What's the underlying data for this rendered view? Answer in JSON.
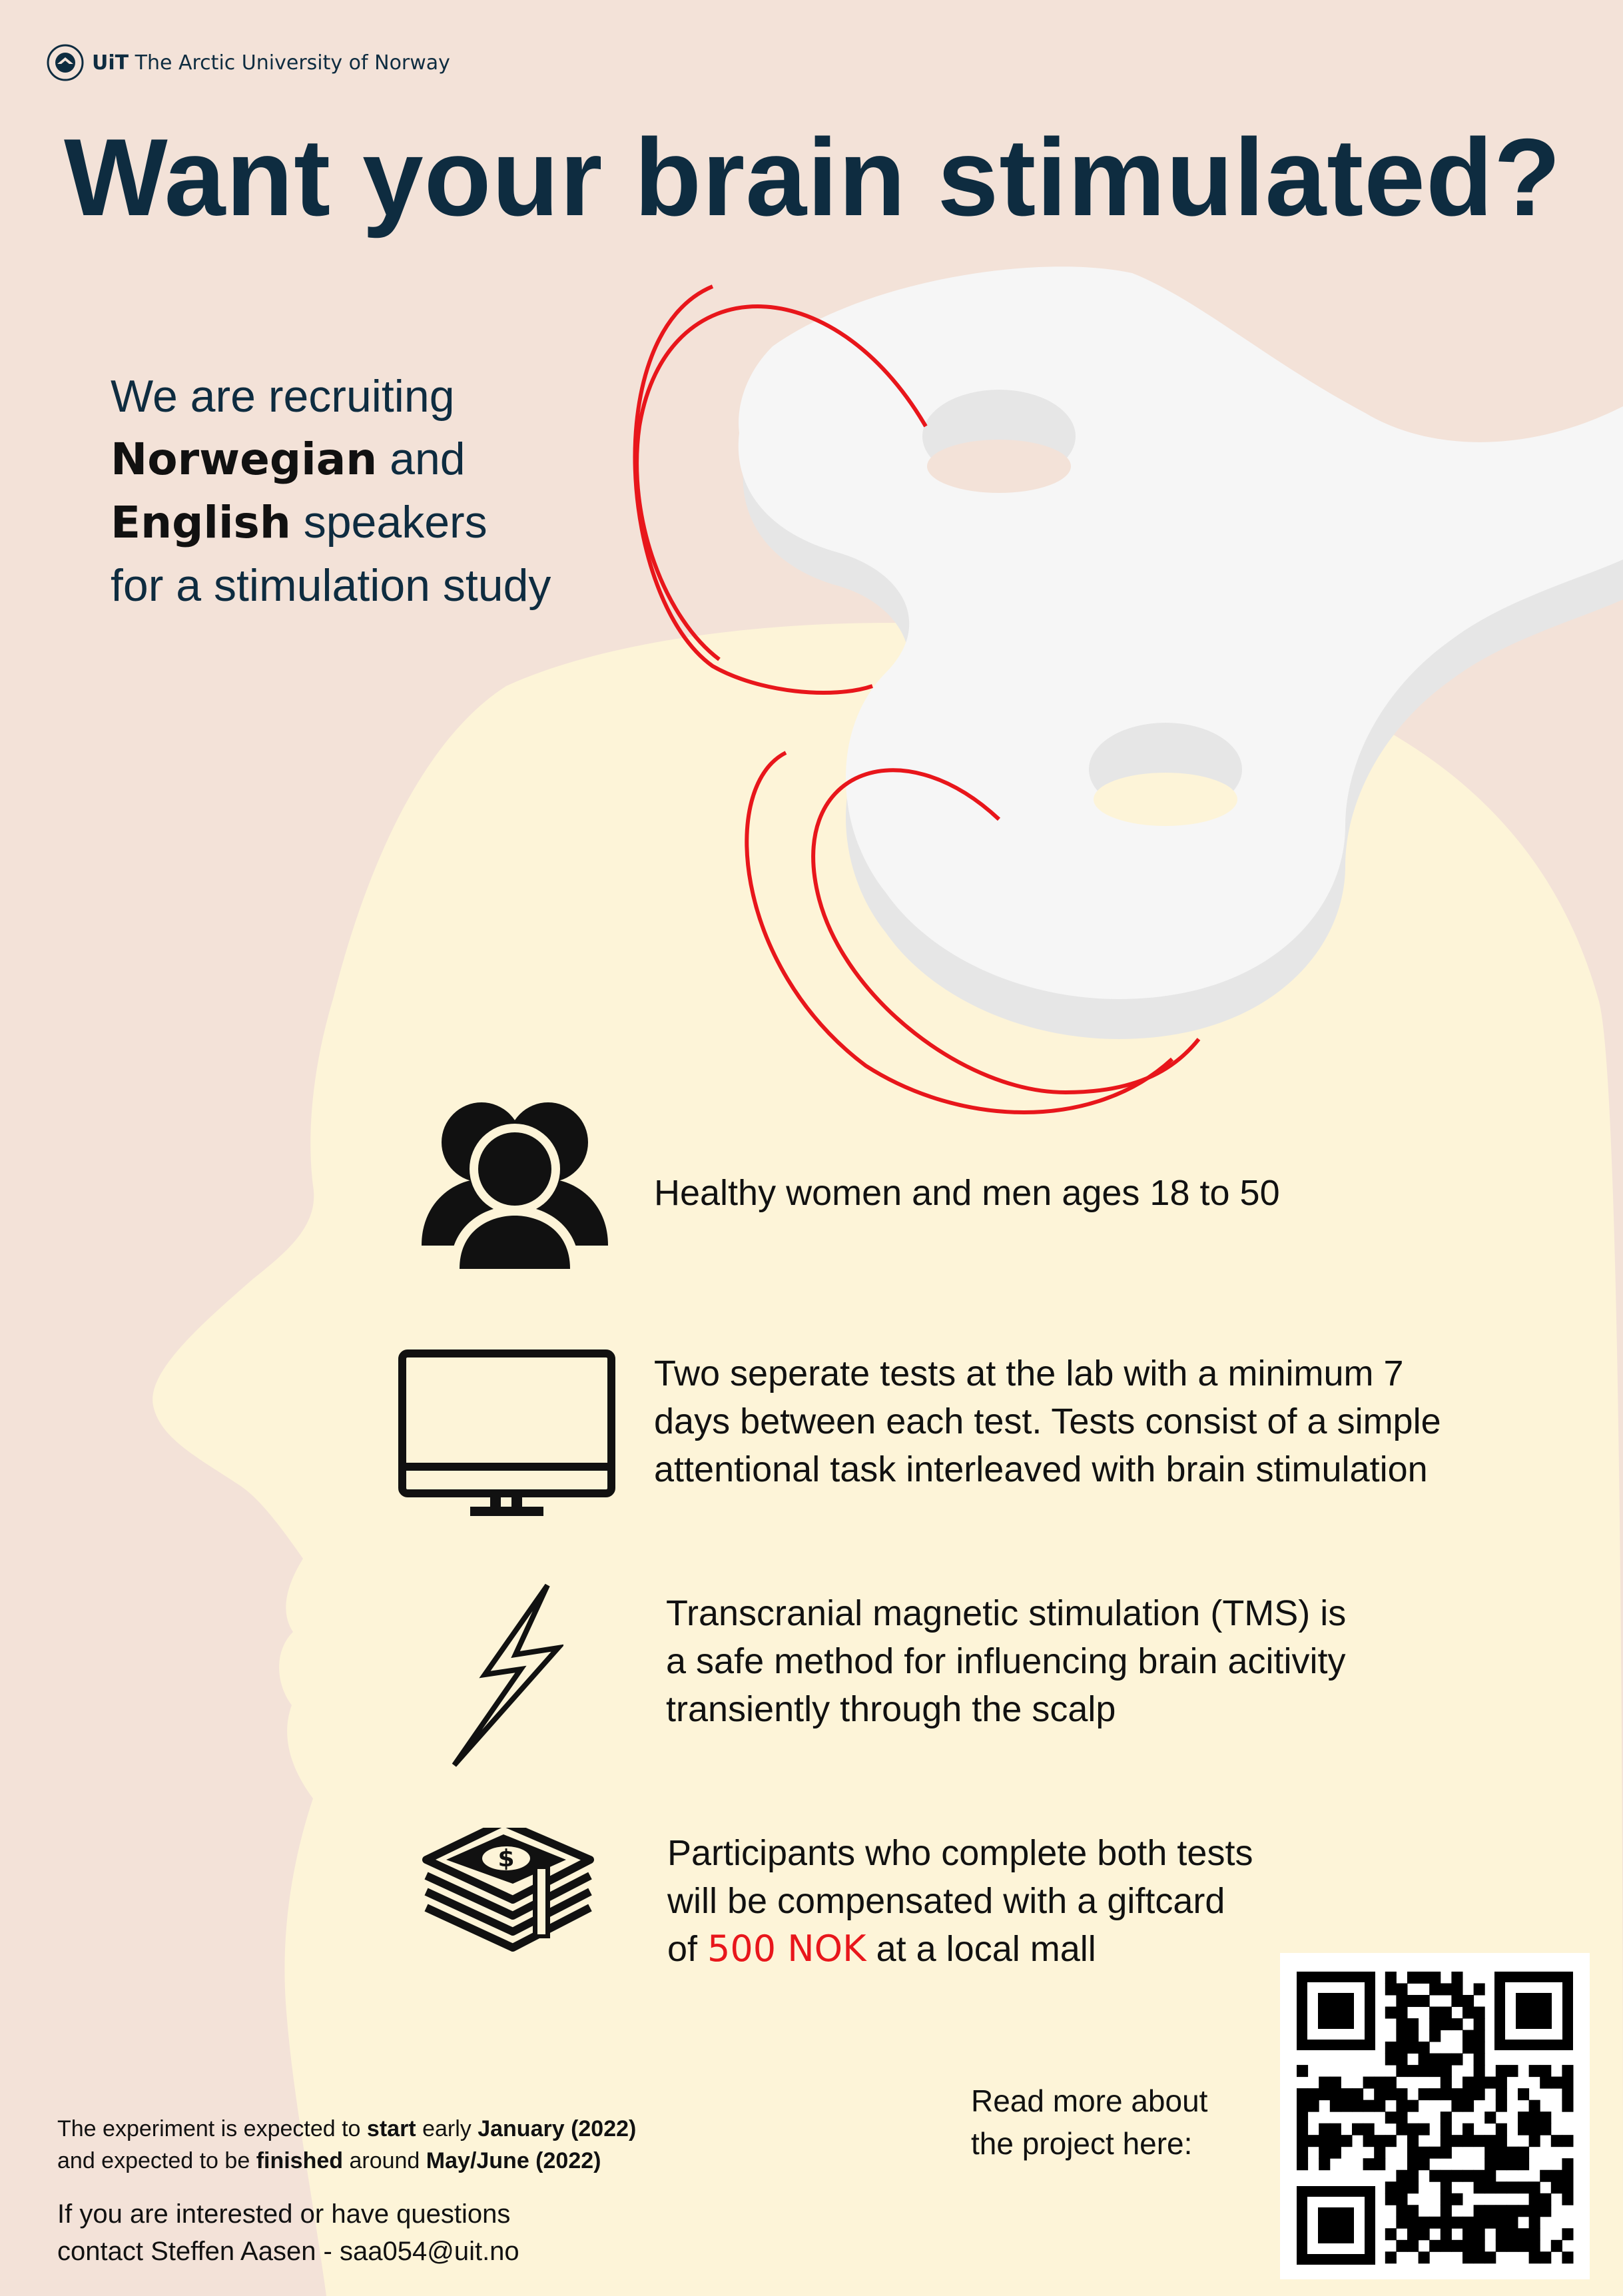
{
  "header": {
    "university_name_bold": "UiT",
    "university_name_rest": "The Arctic University of Norway"
  },
  "title": "Want your brain stimulated?",
  "intro": {
    "line1": "We are recruiting",
    "lang1": "Norwegian",
    "and": " and",
    "lang2": "English",
    "speakers": " speakers",
    "line4": "for a stimulation study"
  },
  "items": [
    {
      "icon": "people-icon",
      "lines": [
        "Healthy women and men ages 18 to 50"
      ]
    },
    {
      "icon": "monitor-icon",
      "lines": [
        "Two seperate tests at the lab with a minimum 7",
        "days between each test. Tests consist of a simple",
        "attentional task interleaved with brain stimulation"
      ]
    },
    {
      "icon": "lightning-icon",
      "lines": [
        "Transcranial magnetic stimulation (TMS) is",
        "a safe method for influencing brain acitivity",
        "transiently through the scalp"
      ]
    },
    {
      "icon": "money-stack-icon",
      "lines": [
        "Participants who complete both tests",
        "will be compensated with a giftcard"
      ],
      "line3_prefix": "of ",
      "amount": "500 NOK",
      "line3_suffix": " at a local mall"
    }
  ],
  "footer": {
    "dates_l1_a": "The experiment is expected to ",
    "dates_l1_b": "start",
    "dates_l1_c": " early ",
    "dates_l1_d": "January (2022)",
    "dates_l2_a": "and expected to be ",
    "dates_l2_b": "finished",
    "dates_l2_c": " around ",
    "dates_l2_d": "May/June (2022)",
    "contact_l1": "If you are interested or have questions",
    "contact_l2": "contact Steffen Aasen - saa054@uit.no"
  },
  "qr": {
    "label_l1": "Read more about",
    "label_l2": "the project here:"
  },
  "colors": {
    "background": "#f3e2d8",
    "head": "#fdf4d8",
    "title": "#0e2c40",
    "accent": "#e8161b",
    "coil": "#f6f6f6"
  }
}
